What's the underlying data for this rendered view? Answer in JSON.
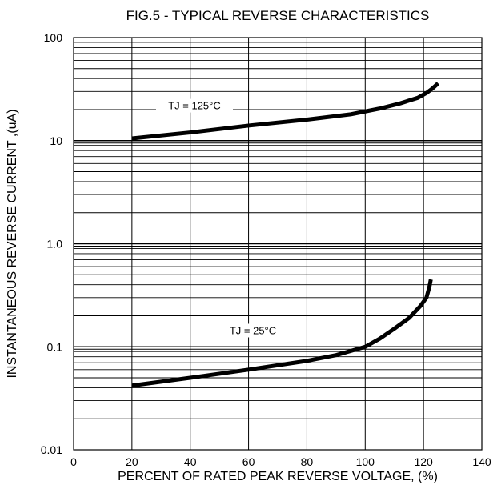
{
  "chart_data": {
    "type": "line",
    "title": "FIG.5 - TYPICAL REVERSE CHARACTERISTICS",
    "xlabel": "PERCENT OF RATED PEAK REVERSE VOLTAGE, (%)",
    "ylabel": "INSTANTANEOUS REVERSE CURRENT ,(uA)",
    "xlim": [
      0,
      140
    ],
    "ylim": [
      0.01,
      100
    ],
    "y_scale": "log",
    "grid": true,
    "x_ticks": [
      "0",
      "20",
      "40",
      "60",
      "80",
      "100",
      "120",
      "140"
    ],
    "y_ticks": [
      "0.01",
      "0.1",
      "1.0",
      "10",
      "100"
    ],
    "series": [
      {
        "name": "TJ = 125°C",
        "x": [
          20,
          40,
          60,
          80,
          95,
          105,
          112,
          118,
          121,
          123,
          125
        ],
        "y": [
          10.5,
          12.0,
          14.0,
          16.0,
          18.0,
          20.5,
          23.0,
          26.0,
          29.0,
          32.0,
          36.0
        ]
      },
      {
        "name": "TJ = 25°C",
        "x": [
          20,
          40,
          60,
          80,
          90,
          100,
          105,
          110,
          115,
          119,
          121,
          122,
          122.5
        ],
        "y": [
          0.042,
          0.05,
          0.06,
          0.073,
          0.083,
          0.1,
          0.12,
          0.15,
          0.19,
          0.25,
          0.3,
          0.38,
          0.45
        ]
      }
    ],
    "annotations": [
      "TJ = 125°C",
      "TJ = 25°C"
    ]
  }
}
